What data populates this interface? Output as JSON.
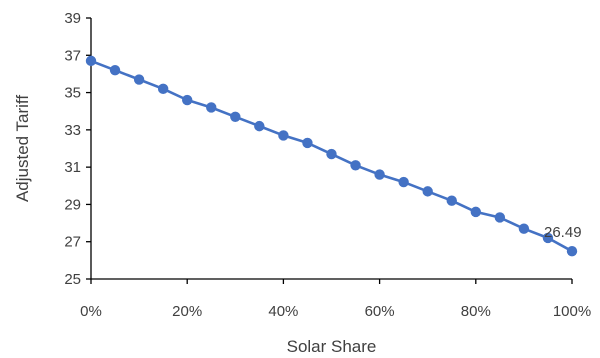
{
  "chart_data": {
    "type": "line",
    "title": "",
    "xlabel": "Solar Share",
    "ylabel": "Adjusted Tariff",
    "x": [
      0,
      5,
      10,
      15,
      20,
      25,
      30,
      35,
      40,
      45,
      50,
      55,
      60,
      65,
      70,
      75,
      80,
      85,
      90,
      95,
      100
    ],
    "x_unit": "%",
    "xlim": [
      0,
      100
    ],
    "ylim": [
      25,
      39
    ],
    "x_ticks": [
      "0%",
      "20%",
      "40%",
      "60%",
      "80%",
      "100%"
    ],
    "y_ticks": [
      "25",
      "27",
      "29",
      "31",
      "33",
      "35",
      "37",
      "39"
    ],
    "series": [
      {
        "values": [
          36.7,
          36.2,
          35.7,
          35.2,
          34.6,
          34.2,
          33.7,
          33.2,
          32.7,
          32.3,
          31.7,
          31.1,
          30.6,
          30.2,
          29.7,
          29.2,
          28.6,
          28.3,
          27.7,
          27.2,
          26.49
        ],
        "color": "#4472C4"
      }
    ],
    "annotations": [
      {
        "text": "26.49",
        "x": 100,
        "y": 26.49
      }
    ],
    "grid": false,
    "legend": "none"
  }
}
